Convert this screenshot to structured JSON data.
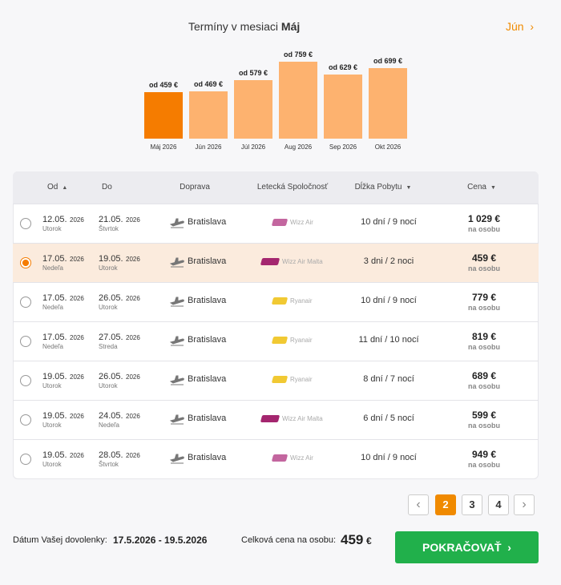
{
  "month_chart": {
    "title_prefix": "Termíny v mesiaci",
    "title_month": "Máj",
    "next_month": "Jún",
    "categories": [
      "Máj 2026",
      "Jún 2026",
      "Júl 2026",
      "Aug 2026",
      "Sep 2026",
      "Okt 2026"
    ],
    "values": [
      459,
      469,
      579,
      759,
      629,
      699
    ],
    "value_labels": [
      "od 459 €",
      "od 469 €",
      "od 579 €",
      "od 759 €",
      "od 629 €",
      "od 699 €"
    ],
    "color": "#fdb26f",
    "selected_color": "#f57c00",
    "selected_index": 0
  },
  "table": {
    "headers": [
      "Od",
      "Do",
      "Doprava",
      "Letecká Spoločnosť",
      "Dĺžka Pobytu",
      "Cena"
    ],
    "selected_row": 1,
    "rows": [
      {
        "from_date": "12.05.",
        "from_year": "2026",
        "from_day": "Utorok",
        "to_date": "21.05.",
        "to_year": "2026",
        "to_day": "Štvrtok",
        "transport": "Bratislava",
        "airline": "Wizz Air",
        "logo_color": "#c3669f",
        "days": "10 dní",
        "nights": "9 nocí",
        "price": "1 029 €",
        "price_note": "na osobu"
      },
      {
        "from_date": "17.05.",
        "from_year": "2026",
        "from_day": "Nedeľa",
        "to_date": "19.05.",
        "to_year": "2026",
        "to_day": "Utorok",
        "transport": "Bratislava",
        "airline": "Wizz Air Malta",
        "logo_color": "#a4266f",
        "days": "3 dni",
        "nights": "2 noci",
        "price": "459 €",
        "price_note": "na osobu"
      },
      {
        "from_date": "17.05.",
        "from_year": "2026",
        "from_day": "Nedeľa",
        "to_date": "26.05.",
        "to_year": "2026",
        "to_day": "Utorok",
        "transport": "Bratislava",
        "airline": "Ryanair",
        "logo_color": "#f1c933",
        "days": "10 dní",
        "nights": "9 nocí",
        "price": "779 €",
        "price_note": "na osobu"
      },
      {
        "from_date": "17.05.",
        "from_year": "2026",
        "from_day": "Nedeľa",
        "to_date": "27.05.",
        "to_year": "2026",
        "to_day": "Streda",
        "transport": "Bratislava",
        "airline": "Ryanair",
        "logo_color": "#f1c933",
        "days": "11 dní",
        "nights": "10 nocí",
        "price": "819 €",
        "price_note": "na osobu"
      },
      {
        "from_date": "19.05.",
        "from_year": "2026",
        "from_day": "Utorok",
        "to_date": "26.05.",
        "to_year": "2026",
        "to_day": "Utorok",
        "transport": "Bratislava",
        "airline": "Ryanair",
        "logo_color": "#f1c933",
        "days": "8 dní",
        "nights": "7 nocí",
        "price": "689 €",
        "price_note": "na osobu"
      },
      {
        "from_date": "19.05.",
        "from_year": "2026",
        "from_day": "Utorok",
        "to_date": "24.05.",
        "to_year": "2026",
        "to_day": "Nedeľa",
        "transport": "Bratislava",
        "airline": "Wizz Air Malta",
        "logo_color": "#a4266f",
        "days": "6 dní",
        "nights": "5 nocí",
        "price": "599 €",
        "price_note": "na osobu"
      },
      {
        "from_date": "19.05.",
        "from_year": "2026",
        "from_day": "Utorok",
        "to_date": "28.05.",
        "to_year": "2026",
        "to_day": "Štvrtok",
        "transport": "Bratislava",
        "airline": "Wizz Air",
        "logo_color": "#c3669f",
        "days": "10 dní",
        "nights": "9 nocí",
        "price": "949 €",
        "price_note": "na osobu"
      }
    ]
  },
  "pagination": {
    "pages": [
      "2",
      "3",
      "4"
    ],
    "current": 0
  },
  "footer": {
    "date_label": "Dátum Vašej dovolenky:",
    "date_value": "17.5.2026 - 19.5.2026",
    "price_label": "Celková cena na osobu:",
    "price_value": "459",
    "price_currency": "€",
    "button": "POKRAČOVAŤ"
  }
}
